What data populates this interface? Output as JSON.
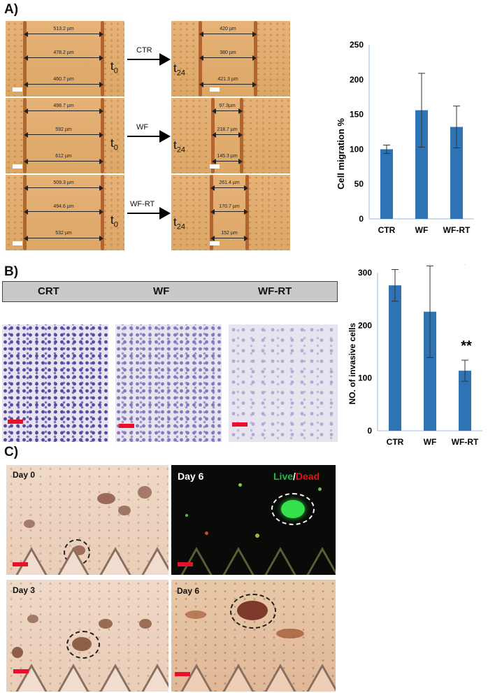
{
  "panel_labels": {
    "a": "A)",
    "b": "B)",
    "c": "C)"
  },
  "scratch_rows": [
    {
      "condition": "CTR",
      "t0_meas": [
        "513.2  µm",
        "478.2  µm",
        "460.7  µm"
      ],
      "t24_meas": [
        "420  µm",
        "380  µm",
        "421.3  µm"
      ]
    },
    {
      "condition": "WF",
      "t0_meas": [
        "498.7  µm",
        "592  µm",
        "612  µm"
      ],
      "t24_meas": [
        "97.3µm",
        "218.7  µm",
        "145.3  µm"
      ]
    },
    {
      "condition": "WF-RT",
      "t0_meas": [
        "509.3  µm",
        "494.6  µm",
        "532  µm"
      ],
      "t24_meas": [
        "261.4  µm",
        "170.7  µm",
        "152  µm"
      ]
    }
  ],
  "time_labels": {
    "t0_main": "t",
    "t0_sub": "0",
    "t24_main": "t",
    "t24_sub": "24"
  },
  "invasion_headers": [
    "CRT",
    "WF",
    "WF-RT"
  ],
  "spheroid_labels": {
    "top_left": "Day 0",
    "top_right": "Day 6",
    "live": "Live",
    "slash": "/",
    "dead": "Dead",
    "bottom_left": "Day 3",
    "bottom_right": "Day 6"
  },
  "colors": {
    "bar": "#2e74b5",
    "live": "#1fb84a",
    "dead": "#e01818",
    "scale_bar": "#e8102a"
  },
  "chart_data": [
    {
      "type": "bar",
      "categories": [
        "CTR",
        "WF",
        "WF-RT"
      ],
      "values": [
        100,
        156,
        132
      ],
      "errors": [
        6,
        53,
        30
      ],
      "xlabel": "",
      "ylabel": "Cell migration %",
      "ylim": [
        0,
        250
      ],
      "yticks": [
        "0",
        "50",
        "100",
        "150",
        "200",
        "250"
      ],
      "grid": false
    },
    {
      "type": "bar",
      "categories": [
        "CTR",
        "WF",
        "WF-RT"
      ],
      "values": [
        276,
        226,
        114
      ],
      "errors": [
        30,
        87,
        20
      ],
      "xlabel": "",
      "ylabel": "NO. of invasive cells",
      "ylim": [
        0,
        300
      ],
      "yticks": [
        "0",
        "100",
        "200",
        "300"
      ],
      "annotations": {
        "bracket_star": "*",
        "wfrt_star": "**"
      },
      "grid": false
    }
  ]
}
